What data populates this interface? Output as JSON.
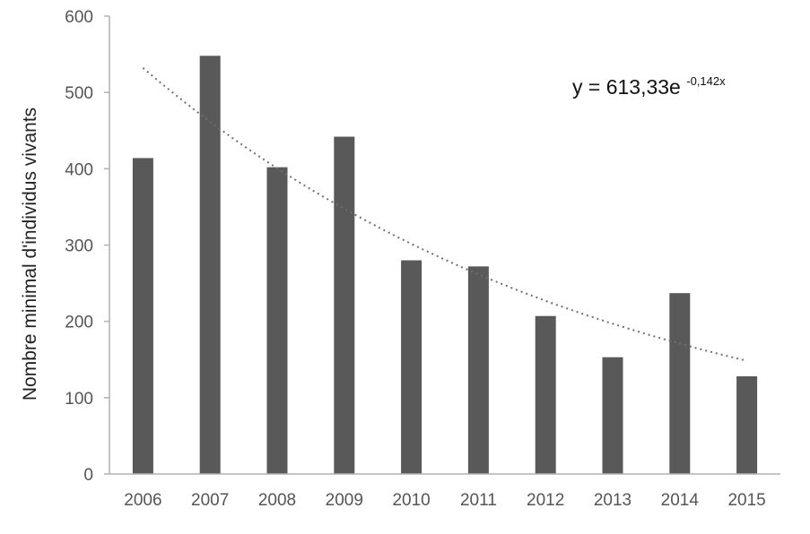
{
  "chart_data": {
    "type": "bar",
    "title": "",
    "xlabel": "",
    "ylabel": "Nombre minimal d'individus vivants",
    "categories": [
      "2006",
      "2007",
      "2008",
      "2009",
      "2010",
      "2011",
      "2012",
      "2013",
      "2014",
      "2015"
    ],
    "values": [
      414,
      548,
      402,
      442,
      280,
      272,
      207,
      153,
      237,
      128
    ],
    "ylim": [
      0,
      600
    ],
    "yticks": [
      "0",
      "100",
      "200",
      "300",
      "400",
      "500",
      "600"
    ],
    "bar_color": "#595959",
    "grid": false,
    "legend": "none",
    "trendline": {
      "type": "exponential",
      "a": 613.33,
      "b": -0.142,
      "style": "dotted",
      "equation_text": {
        "base": "y = 613,33e",
        "exponent": "-0,142x"
      }
    }
  }
}
